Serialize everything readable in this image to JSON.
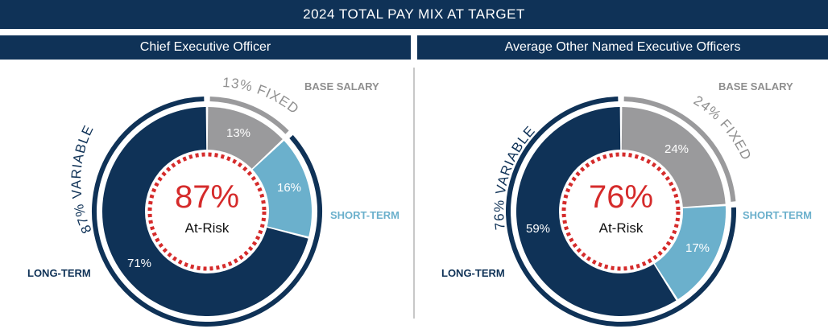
{
  "banner": {
    "title": "2024 TOTAL PAY MIX AT TARGET"
  },
  "colors": {
    "navy": "#0f3257",
    "gray": "#9a9a9c",
    "light_blue": "#6bb0cc",
    "red": "#d52b2b"
  },
  "charts": {
    "ceo": {
      "title": "Chief Executive Officer",
      "center_value": "87%",
      "center_label": "At-Risk",
      "variable_label": "87% VARIABLE",
      "fixed_label": "13% FIXED",
      "base_label": "BASE SALARY",
      "short_label": "SHORT-TERM",
      "long_label": "LONG-TERM",
      "seg_base": "13%",
      "seg_short": "16%",
      "seg_long": "71%"
    },
    "neo": {
      "title": "Average Other Named Executive Officers",
      "center_value": "76%",
      "center_label": "At-Risk",
      "variable_label": "76% VARIABLE",
      "fixed_label": "24% FIXED",
      "base_label": "BASE SALARY",
      "short_label": "SHORT-TERM",
      "long_label": "LONG-TERM",
      "seg_base": "24%",
      "seg_short": "17%",
      "seg_long": "59%"
    }
  },
  "chart_data": [
    {
      "type": "pie",
      "title": "Chief Executive Officer",
      "categories": [
        "Base Salary",
        "Short-Term",
        "Long-Term"
      ],
      "values": [
        13,
        16,
        71
      ],
      "fixed_pct": 13,
      "variable_pct": 87,
      "at_risk_pct": 87
    },
    {
      "type": "pie",
      "title": "Average Other Named Executive Officers",
      "categories": [
        "Base Salary",
        "Short-Term",
        "Long-Term"
      ],
      "values": [
        24,
        17,
        59
      ],
      "fixed_pct": 24,
      "variable_pct": 76,
      "at_risk_pct": 76
    }
  ]
}
